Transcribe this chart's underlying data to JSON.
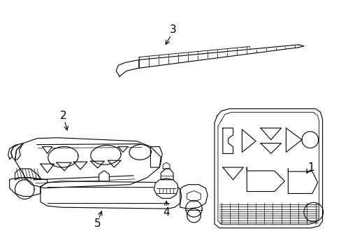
{
  "background_color": "#ffffff",
  "line_color": "#000000",
  "line_width": 0.8,
  "label_fontsize": 11,
  "figsize": [
    4.89,
    3.6
  ],
  "dpi": 100
}
